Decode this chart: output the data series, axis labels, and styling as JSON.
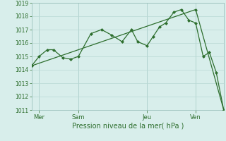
{
  "background_color": "#d8eeeb",
  "grid_color": "#b8d8d4",
  "line_color": "#2d6e2d",
  "marker_color": "#2d6e2d",
  "title": "Pression niveau de la mer( hPa )",
  "ylim": [
    1011,
    1019
  ],
  "yticks": [
    1011,
    1012,
    1013,
    1014,
    1015,
    1016,
    1017,
    1018,
    1019
  ],
  "day_labels": [
    "Mer",
    "Sam",
    "Jeu",
    "Ven"
  ],
  "day_positions": [
    12,
    75,
    185,
    263
  ],
  "vline_positions": [
    12,
    75,
    185,
    263
  ],
  "series1_x": [
    0,
    12,
    25,
    35,
    50,
    63,
    75,
    95,
    112,
    128,
    145,
    160,
    170,
    185,
    195,
    205,
    215,
    228,
    240,
    252,
    263,
    275,
    285,
    296,
    308
  ],
  "series1_y": [
    1014.3,
    1015.0,
    1015.5,
    1015.5,
    1014.9,
    1014.8,
    1015.0,
    1016.7,
    1017.0,
    1016.6,
    1016.1,
    1017.0,
    1016.1,
    1015.8,
    1016.5,
    1017.2,
    1017.5,
    1018.3,
    1018.5,
    1017.7,
    1017.5,
    1015.0,
    1015.3,
    1013.8,
    1011.0
  ],
  "series2_x": [
    0,
    263,
    308
  ],
  "series2_y": [
    1014.3,
    1018.5,
    1011.0
  ],
  "xlim": [
    0,
    308
  ]
}
